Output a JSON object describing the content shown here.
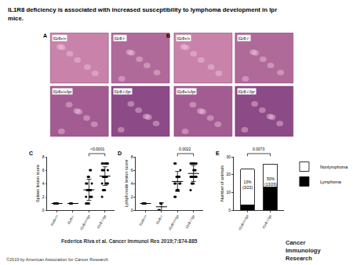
{
  "title_lines": [
    "IL1R8 deficiency is associated with increased susceptibility to lymphoma development in lpr",
    "mice."
  ],
  "panels": [
    {
      "label": "A",
      "images": [
        "Il1r8+/+",
        "Il1r8-/-",
        "Il1r8+/+/lpr",
        "Il1r8-/-/lpr"
      ]
    },
    {
      "label": "B",
      "images": [
        "Il1r8+/+",
        "Il1r8-/-",
        "Il1r8+/+/lpr",
        "Il1r8-/-/lpr"
      ]
    }
  ],
  "chart_data": [
    {
      "type": "scatter",
      "label": "C",
      "ylabel": "Spleen lesion score",
      "categories": [
        "Il1r8+/+",
        "Il1r8-/-",
        "Il1r8+/+/lpr",
        "Il1r8-/-/lpr"
      ],
      "points": [
        [
          1,
          1,
          1,
          1,
          1
        ],
        [
          1,
          1,
          1
        ],
        [
          1,
          1,
          1,
          1,
          2,
          2,
          2,
          2,
          3,
          3,
          3,
          3,
          3,
          4,
          4,
          4,
          5,
          5,
          6,
          6
        ],
        [
          2,
          3,
          3,
          3,
          4,
          4,
          4,
          4,
          5,
          5,
          5,
          5,
          5,
          6,
          6,
          6,
          6,
          7,
          7,
          7,
          7,
          7,
          7
        ]
      ],
      "mean": [
        1,
        1,
        3.05,
        5.1
      ],
      "sd": [
        0,
        0,
        1.6,
        1.4
      ],
      "p_value": {
        "text": "<0.0001",
        "between": [
          "Il1r8+/+/lpr",
          "Il1r8-/-/lpr"
        ]
      },
      "ylim": [
        0,
        8
      ],
      "yticks": [
        0,
        2,
        4,
        6,
        8
      ],
      "color": "#000000",
      "marker": "circle",
      "grid": false
    },
    {
      "type": "scatter",
      "label": "D",
      "ylabel": "Lymph node lesion score",
      "categories": [
        "Il1r8+/+",
        "Il1r8-/-",
        "Il1r8+/+/lpr",
        "Il1r8-/-/lpr"
      ],
      "points": [
        [
          1,
          1,
          1,
          1
        ],
        [
          0,
          0,
          1,
          1
        ],
        [
          2,
          2,
          3,
          3,
          3,
          4,
          4,
          4,
          4,
          5,
          5,
          5,
          5,
          6,
          7,
          7
        ],
        [
          3,
          4,
          4,
          4,
          5,
          5,
          5,
          5,
          5,
          5,
          6,
          6,
          6,
          7,
          7,
          7,
          7,
          7,
          7
        ]
      ],
      "mean": [
        1,
        0.5,
        4.3,
        5.5
      ],
      "sd": [
        0,
        0.6,
        1.5,
        1.2
      ],
      "p_value": {
        "text": "0.0022",
        "between": [
          "Il1r8+/+/lpr",
          "Il1r8-/-/lpr"
        ]
      },
      "ylim": [
        0,
        8
      ],
      "yticks": [
        0,
        2,
        4,
        6,
        8
      ],
      "color": "#000000",
      "marker": "circle",
      "grid": false
    },
    {
      "type": "bar",
      "label": "E",
      "ylabel": "Number of animals",
      "stacked": true,
      "legend": "right",
      "categories": [
        "Il1r8+/+/lpr",
        "Il1r8-/-/lpr"
      ],
      "series": [
        {
          "name": "Lymphoma",
          "color": "#000000",
          "values": [
            3,
            13
          ]
        },
        {
          "name": "Nonlymphoma",
          "color": "#ffffff",
          "values": [
            20,
            13
          ]
        }
      ],
      "annotations": [
        {
          "category": "Il1r8+/+/lpr",
          "lines": [
            "13%",
            "(3/23)"
          ]
        },
        {
          "category": "Il1r8-/-/lpr",
          "lines": [
            "50%",
            "(13/26)"
          ]
        }
      ],
      "p_value": {
        "text": "0.0073",
        "between": [
          "Il1r8+/+/lpr",
          "Il1r8-/-/lpr"
        ]
      },
      "ylim": [
        0,
        30
      ],
      "yticks": [
        0,
        10,
        20,
        30
      ],
      "grid": false
    }
  ],
  "footer": {
    "citation": "Federica Riva et al. Cancer Immunol Res 2019;7:874-885",
    "copyright": "©2019 by American Association for Cancer Research",
    "journal_lines": [
      "Cancer",
      "Immunology",
      "Research"
    ]
  }
}
